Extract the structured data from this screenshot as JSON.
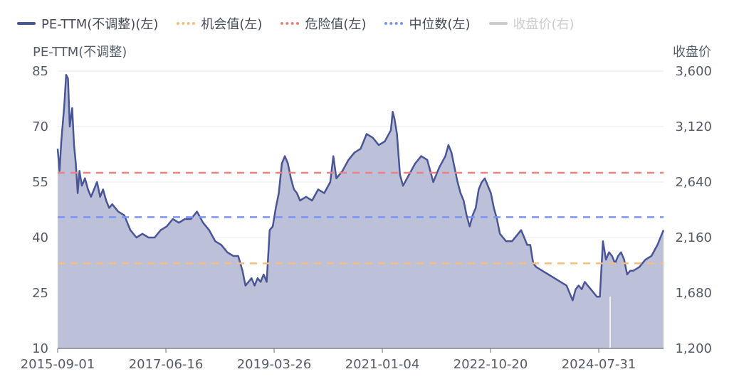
{
  "chart_data": {
    "type": "line",
    "title": "",
    "left_axis": {
      "title": "PE-TTM(不调整)",
      "ticks": [
        85,
        70,
        55,
        40,
        25,
        10
      ],
      "tick_labels": [
        "85",
        "70",
        "55",
        "40",
        "25",
        "10"
      ],
      "range": [
        10,
        85
      ]
    },
    "right_axis": {
      "title": "收盘价",
      "tick_labels": [
        "3,600",
        "3,120",
        "2,640",
        "2,160",
        "1,680",
        "1,200"
      ],
      "range": [
        1200,
        3600
      ]
    },
    "x_axis": {
      "tick_labels": [
        "2015-09-01",
        "2017-06-16",
        "2019-03-26",
        "2021-01-04",
        "2022-10-20",
        "2024-07-31"
      ]
    },
    "grid": true,
    "legend_position": "top",
    "legend": [
      {
        "name": "PE-TTM(不调整)(左)",
        "style": "solid",
        "color": "#4a5596",
        "active": true
      },
      {
        "name": "机会值(左)",
        "style": "dotted",
        "color": "#f7bd7c",
        "active": true
      },
      {
        "name": "危险值(左)",
        "style": "dotted",
        "color": "#f08080",
        "active": true
      },
      {
        "name": "中位数(左)",
        "style": "dotted",
        "color": "#7b93f5",
        "active": true
      },
      {
        "name": "收盘价(右)",
        "style": "solid",
        "color": "#cccccc",
        "active": false
      }
    ],
    "reference_lines": [
      {
        "name": "机会值(左)",
        "value": 33,
        "color": "#f7bd7c"
      },
      {
        "name": "危险值(左)",
        "value": 57.5,
        "color": "#f08080"
      },
      {
        "name": "中位数(左)",
        "value": 45.5,
        "color": "#7b93f5"
      }
    ],
    "series": [
      {
        "name": "PE-TTM(不调整)(左)",
        "axis": "left",
        "color": "#4a5596",
        "fill": "#bcc0d8",
        "values": [
          [
            0,
            64
          ],
          [
            0.003,
            58
          ],
          [
            0.006,
            66
          ],
          [
            0.011,
            76
          ],
          [
            0.014,
            84
          ],
          [
            0.017,
            83
          ],
          [
            0.02,
            70
          ],
          [
            0.024,
            75
          ],
          [
            0.027,
            65
          ],
          [
            0.03,
            60
          ],
          [
            0.033,
            52
          ],
          [
            0.036,
            58
          ],
          [
            0.04,
            54
          ],
          [
            0.045,
            56
          ],
          [
            0.05,
            53
          ],
          [
            0.055,
            51
          ],
          [
            0.06,
            53
          ],
          [
            0.065,
            55
          ],
          [
            0.07,
            51
          ],
          [
            0.075,
            53
          ],
          [
            0.08,
            50
          ],
          [
            0.085,
            48
          ],
          [
            0.09,
            49
          ],
          [
            0.1,
            47
          ],
          [
            0.11,
            46
          ],
          [
            0.12,
            42
          ],
          [
            0.13,
            40
          ],
          [
            0.14,
            41
          ],
          [
            0.15,
            40
          ],
          [
            0.16,
            40
          ],
          [
            0.17,
            42
          ],
          [
            0.18,
            43
          ],
          [
            0.19,
            45
          ],
          [
            0.2,
            44
          ],
          [
            0.21,
            45
          ],
          [
            0.22,
            45
          ],
          [
            0.23,
            47
          ],
          [
            0.24,
            44
          ],
          [
            0.25,
            42
          ],
          [
            0.26,
            39
          ],
          [
            0.27,
            38
          ],
          [
            0.28,
            36
          ],
          [
            0.29,
            35
          ],
          [
            0.298,
            35
          ],
          [
            0.305,
            31
          ],
          [
            0.31,
            27
          ],
          [
            0.315,
            28
          ],
          [
            0.32,
            29
          ],
          [
            0.325,
            27
          ],
          [
            0.33,
            29
          ],
          [
            0.335,
            28
          ],
          [
            0.34,
            30
          ],
          [
            0.345,
            28
          ],
          [
            0.35,
            42
          ],
          [
            0.355,
            43
          ],
          [
            0.36,
            48
          ],
          [
            0.365,
            52
          ],
          [
            0.37,
            60
          ],
          [
            0.375,
            62
          ],
          [
            0.38,
            60
          ],
          [
            0.385,
            56
          ],
          [
            0.39,
            53
          ],
          [
            0.395,
            52
          ],
          [
            0.4,
            50
          ],
          [
            0.41,
            51
          ],
          [
            0.42,
            50
          ],
          [
            0.43,
            53
          ],
          [
            0.44,
            52
          ],
          [
            0.45,
            55
          ],
          [
            0.455,
            62
          ],
          [
            0.46,
            56
          ],
          [
            0.47,
            58
          ],
          [
            0.48,
            61
          ],
          [
            0.49,
            63
          ],
          [
            0.5,
            64
          ],
          [
            0.51,
            68
          ],
          [
            0.52,
            67
          ],
          [
            0.53,
            65
          ],
          [
            0.54,
            66
          ],
          [
            0.55,
            69
          ],
          [
            0.553,
            74
          ],
          [
            0.556,
            72
          ],
          [
            0.56,
            68
          ],
          [
            0.565,
            57
          ],
          [
            0.57,
            54
          ],
          [
            0.58,
            57
          ],
          [
            0.59,
            60
          ],
          [
            0.6,
            62
          ],
          [
            0.61,
            61
          ],
          [
            0.62,
            55
          ],
          [
            0.63,
            59
          ],
          [
            0.64,
            62
          ],
          [
            0.645,
            65
          ],
          [
            0.65,
            63
          ],
          [
            0.655,
            59
          ],
          [
            0.66,
            55
          ],
          [
            0.665,
            52
          ],
          [
            0.67,
            50
          ],
          [
            0.675,
            46
          ],
          [
            0.68,
            43
          ],
          [
            0.685,
            46
          ],
          [
            0.69,
            48
          ],
          [
            0.695,
            53
          ],
          [
            0.7,
            55
          ],
          [
            0.705,
            56
          ],
          [
            0.71,
            54
          ],
          [
            0.715,
            52
          ],
          [
            0.72,
            48
          ],
          [
            0.725,
            45
          ],
          [
            0.73,
            41
          ],
          [
            0.735,
            40
          ],
          [
            0.74,
            39
          ],
          [
            0.75,
            39
          ],
          [
            0.76,
            41
          ],
          [
            0.765,
            42
          ],
          [
            0.77,
            40
          ],
          [
            0.775,
            38
          ],
          [
            0.78,
            38
          ],
          [
            0.785,
            33
          ],
          [
            0.79,
            32
          ],
          [
            0.8,
            31
          ],
          [
            0.81,
            30
          ],
          [
            0.82,
            29
          ],
          [
            0.83,
            28
          ],
          [
            0.84,
            27
          ],
          [
            0.845,
            25
          ],
          [
            0.85,
            23
          ],
          [
            0.855,
            26
          ],
          [
            0.86,
            27
          ],
          [
            0.865,
            26
          ],
          [
            0.87,
            28
          ],
          [
            0.875,
            27
          ],
          [
            0.88,
            26
          ],
          [
            0.885,
            25
          ],
          [
            0.89,
            24
          ],
          [
            0.895,
            24
          ],
          [
            0.9,
            39
          ],
          [
            0.905,
            34
          ],
          [
            0.91,
            36
          ],
          [
            0.915,
            35
          ],
          [
            0.92,
            33
          ],
          [
            0.925,
            35
          ],
          [
            0.93,
            36
          ],
          [
            0.935,
            34
          ],
          [
            0.94,
            30
          ],
          [
            0.945,
            31
          ],
          [
            0.95,
            31
          ],
          [
            0.96,
            32
          ],
          [
            0.97,
            34
          ],
          [
            0.98,
            35
          ],
          [
            0.99,
            38
          ],
          [
            1.0,
            42
          ]
        ]
      }
    ]
  }
}
